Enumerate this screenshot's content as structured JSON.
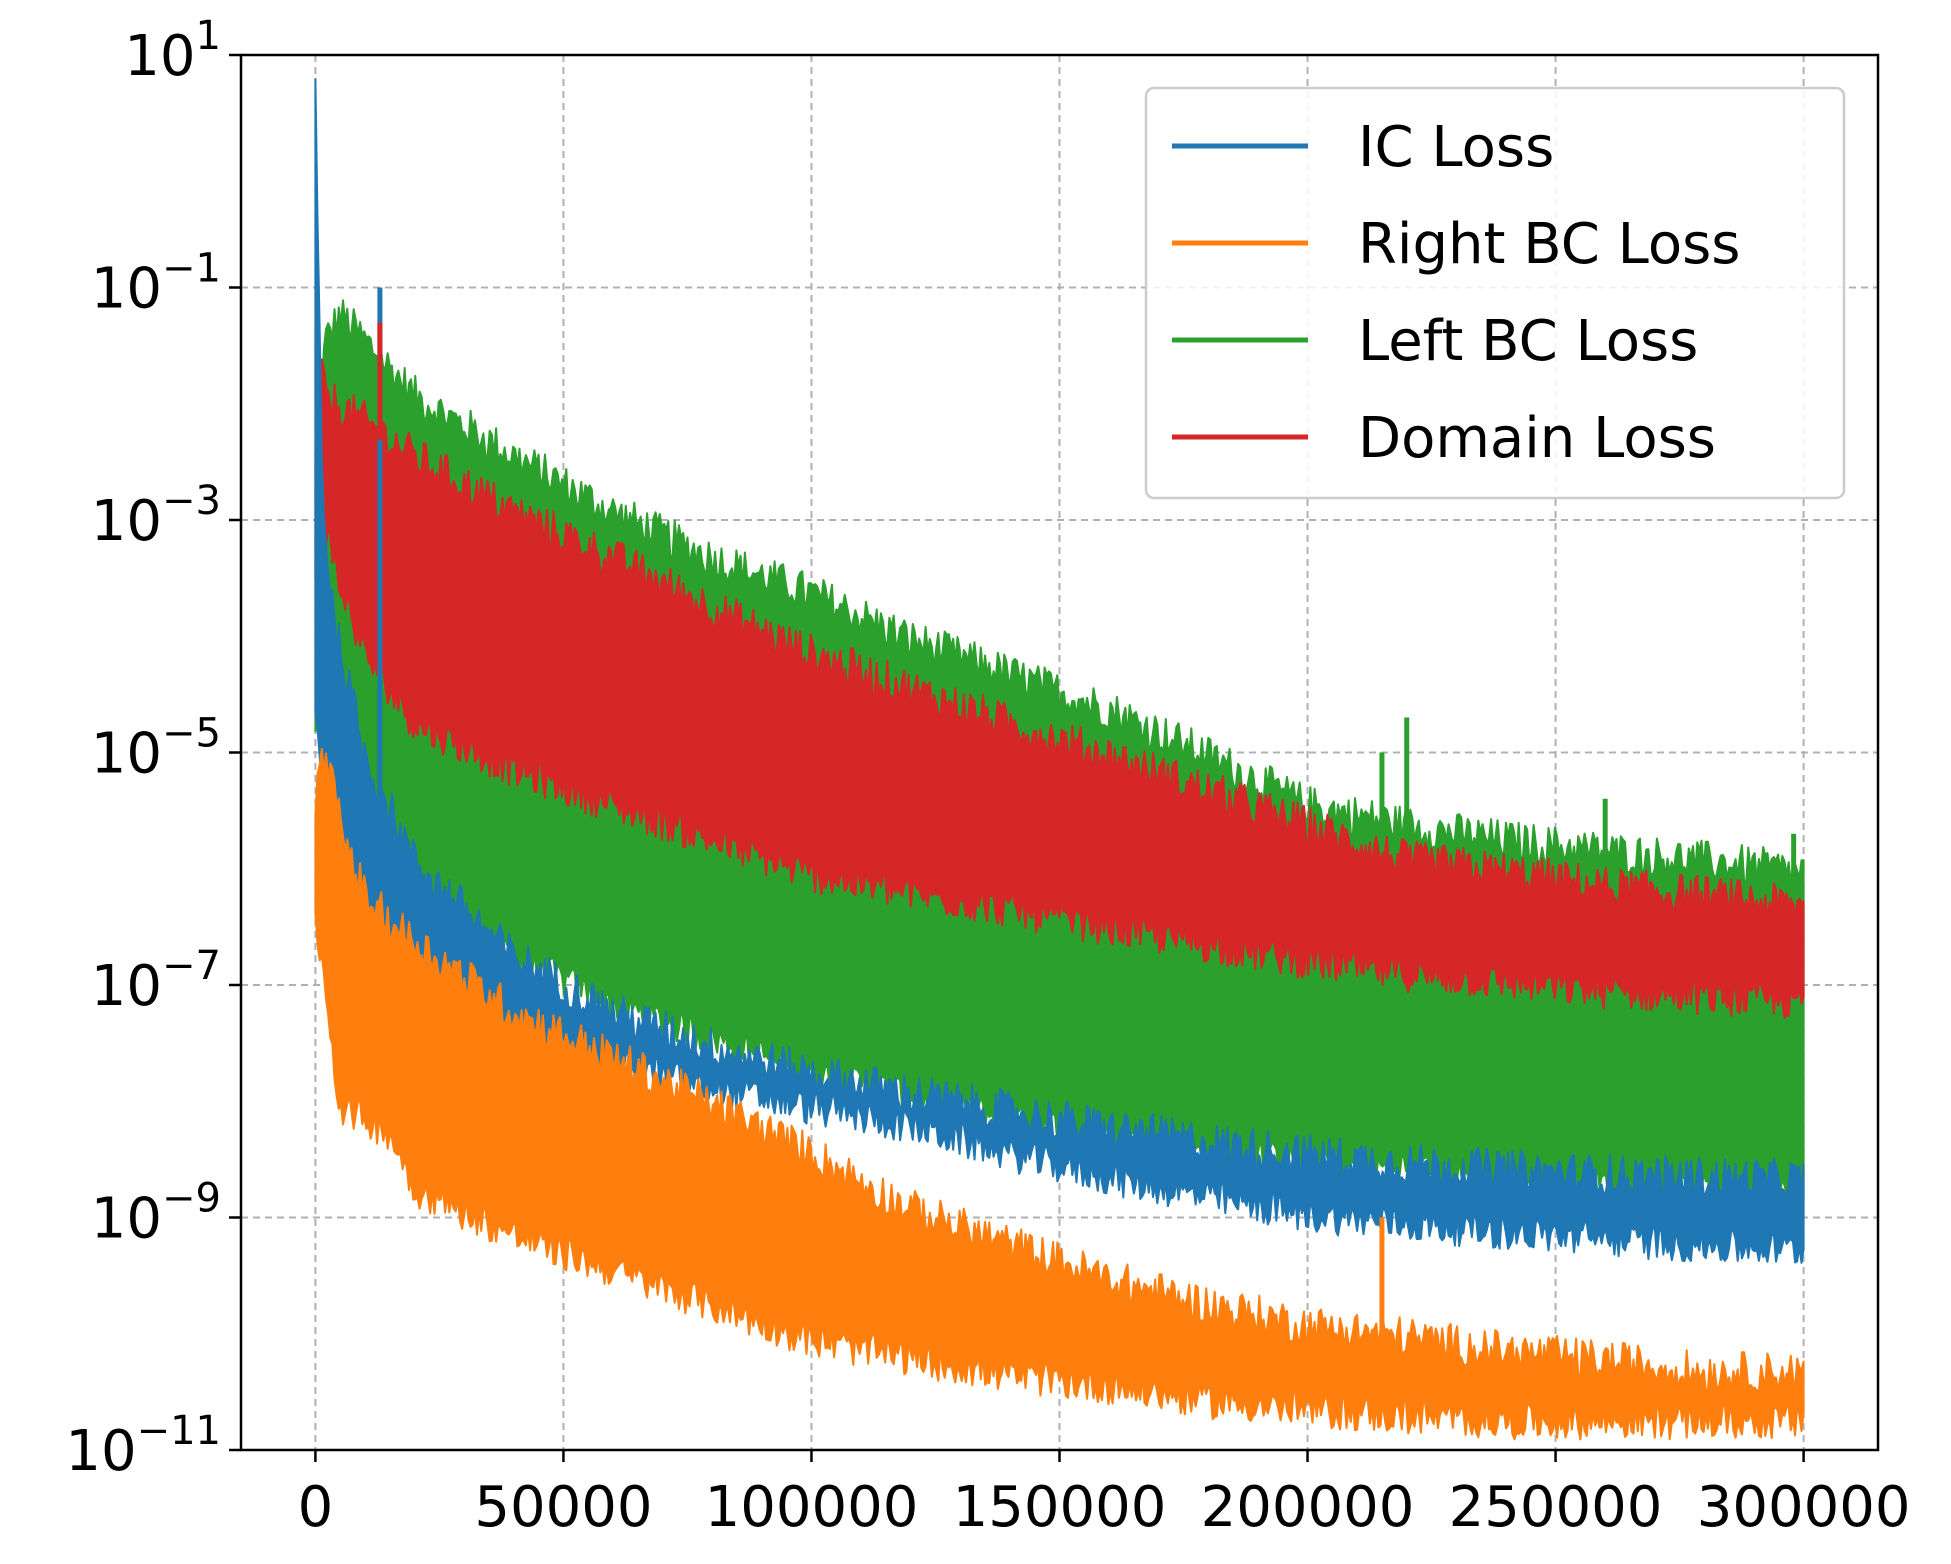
{
  "chart_data": {
    "type": "line",
    "title": "",
    "xlabel": "",
    "ylabel": "",
    "yscale": "log",
    "xlim": [
      -15000,
      315000
    ],
    "ylim": [
      1e-11,
      10
    ],
    "grid": true,
    "legend_position": "top-right",
    "x_ticks": [
      0,
      50000,
      100000,
      150000,
      200000,
      250000,
      300000
    ],
    "x_tick_labels": [
      "0",
      "50000",
      "100000",
      "150000",
      "200000",
      "250000",
      "300000"
    ],
    "y_tick_exponents": [
      1,
      -1,
      -3,
      -5,
      -7,
      -9,
      -11
    ],
    "y_tick_base": "10",
    "series": [
      {
        "name": "Left BC Loss",
        "color": "#2ca02c",
        "x": [
          0,
          2000,
          5000,
          10000,
          20000,
          40000,
          60000,
          80000,
          100000,
          120000,
          140000,
          160000,
          180000,
          200000,
          220000,
          240000,
          260000,
          280000,
          300000
        ],
        "upper": [
          0.003,
          0.03,
          0.05,
          0.03,
          0.01,
          0.003,
          0.001,
          0.0004,
          0.0002,
          8e-05,
          4e-05,
          2e-05,
          8e-06,
          3e-06,
          2e-06,
          1.5e-06,
          1.2e-06,
          1e-06,
          8e-07
        ],
        "lower": [
          2e-05,
          8e-06,
          4e-06,
          2e-06,
          7e-07,
          2e-07,
          8e-08,
          4e-08,
          2e-08,
          1.3e-08,
          8e-09,
          6e-09,
          4e-09,
          3.5e-09,
          3e-09,
          2.5e-09,
          2.2e-09,
          2e-09,
          1.8e-09
        ]
      },
      {
        "name": "Domain Loss",
        "color": "#d62728",
        "x": [
          0,
          2000,
          5000,
          10000,
          20000,
          40000,
          60000,
          80000,
          100000,
          120000,
          140000,
          160000,
          180000,
          200000,
          220000,
          240000,
          260000,
          280000,
          300000
        ],
        "upper": [
          0.03,
          0.01,
          0.008,
          0.006,
          0.003,
          0.001,
          0.0004,
          0.00015,
          6e-05,
          3e-05,
          1.5e-05,
          8e-06,
          4e-06,
          2e-06,
          1e-06,
          8e-07,
          6e-07,
          5e-07,
          4e-07
        ],
        "lower": [
          0.0003,
          0.001,
          0.0003,
          8e-05,
          2e-05,
          8e-06,
          4e-06,
          2e-06,
          1e-06,
          7e-07,
          5e-07,
          3.5e-07,
          2.5e-07,
          1.8e-07,
          1.4e-07,
          1.2e-07,
          1e-07,
          9e-08,
          8e-08
        ]
      },
      {
        "name": "IC Loss",
        "color": "#1f77b4",
        "x": [
          0,
          1500,
          4000,
          10000,
          20000,
          40000,
          60000,
          80000,
          100000,
          120000,
          140000,
          160000,
          180000,
          200000,
          220000,
          240000,
          260000,
          280000,
          300000
        ],
        "upper": [
          5,
          0.001,
          0.0001,
          8e-06,
          1e-06,
          1.5e-07,
          5e-08,
          2.5e-08,
          1.5e-08,
          1e-08,
          7e-09,
          5e-09,
          3.8e-09,
          3e-09,
          2.5e-09,
          2.2e-09,
          2e-09,
          1.9e-09,
          1.8e-09
        ],
        "lower": [
          3e-05,
          3e-06,
          5e-07,
          1.5e-07,
          7e-08,
          4e-08,
          2.5e-08,
          1.5e-08,
          1e-08,
          7e-09,
          4e-09,
          2.5e-09,
          1.7e-09,
          1.2e-09,
          1e-09,
          8.5e-10,
          7.5e-10,
          6.5e-10,
          6e-10
        ]
      },
      {
        "name": "Right BC Loss",
        "color": "#ff7f0e",
        "x": [
          0,
          2000,
          5000,
          10000,
          15000,
          20000,
          40000,
          60000,
          80000,
          100000,
          120000,
          140000,
          160000,
          180000,
          200000,
          220000,
          240000,
          260000,
          280000,
          300000
        ],
        "upper": [
          3e-06,
          1e-05,
          2e-06,
          5e-07,
          3e-07,
          2e-07,
          5e-08,
          2e-08,
          8e-09,
          3e-09,
          1e-09,
          5e-10,
          2.5e-10,
          1.5e-10,
          1e-10,
          8e-11,
          6e-11,
          5e-11,
          4e-11,
          4e-11
        ],
        "lower": [
          5e-07,
          1e-07,
          1e-08,
          8e-09,
          6e-09,
          2e-09,
          8e-10,
          4e-10,
          2e-10,
          1e-10,
          7e-11,
          5e-11,
          4e-11,
          3e-11,
          2.5e-11,
          2.2e-11,
          2e-11,
          2e-11,
          2e-11,
          2e-11
        ]
      }
    ],
    "spikes": [
      {
        "series": "IC Loss",
        "x": 0,
        "y": 5
      },
      {
        "series": "IC Loss",
        "x": 13000,
        "y": 0.1
      },
      {
        "series": "Domain Loss",
        "x": 13000,
        "y": 0.05
      },
      {
        "series": "Left BC Loss",
        "x": 215000,
        "y": 1e-05
      },
      {
        "series": "Left BC Loss",
        "x": 220000,
        "y": 2e-05
      },
      {
        "series": "Left BC Loss",
        "x": 260000,
        "y": 4e-06
      },
      {
        "series": "Left BC Loss",
        "x": 298000,
        "y": 2e-06
      },
      {
        "series": "Right BC Loss",
        "x": 215000,
        "y": 1e-09
      }
    ],
    "legend_order": [
      "IC Loss",
      "Right BC Loss",
      "Left BC Loss",
      "Domain Loss"
    ]
  }
}
